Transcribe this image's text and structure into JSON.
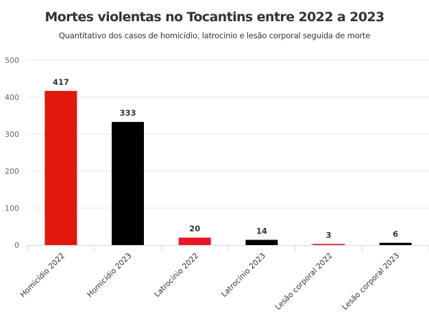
{
  "chart_data": {
    "type": "bar",
    "title": "Mortes violentas no Tocantins entre 2022 a 2023",
    "subtitle": "Quantitativo dos casos de homicídio, latrocínio e lesão corporal seguida de morte",
    "categories": [
      "Homicídio 2022",
      "Homicídio 2023",
      "Latrocínio 2022",
      "Latrocínio 2023",
      "Lesão corporal 2022",
      "Lesão corporal 2023"
    ],
    "values": [
      417,
      333,
      20,
      14,
      3,
      6
    ],
    "colors": [
      "#e2180c",
      "#000000",
      "#ea1423",
      "#000000",
      "#ea1423",
      "#000000"
    ],
    "ylim": [
      0,
      500
    ],
    "yticks": [
      0,
      100,
      200,
      300,
      400,
      500
    ],
    "xlabel": "",
    "ylabel": "",
    "grid": true,
    "data_labels": true
  }
}
